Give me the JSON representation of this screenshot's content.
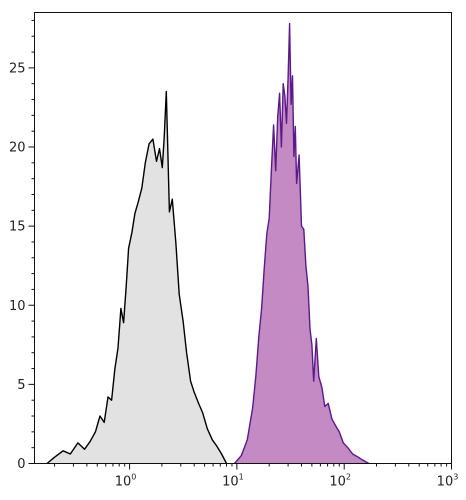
{
  "chart_data": {
    "type": "area",
    "title": "",
    "xlabel": "",
    "ylabel": "",
    "x_scale": "log",
    "xlim": [
      0.13,
      1000
    ],
    "ylim": [
      0,
      28.5
    ],
    "x_ticks": [
      {
        "value": 1,
        "base": "10",
        "exp": "0"
      },
      {
        "value": 10,
        "base": "10",
        "exp": "1"
      },
      {
        "value": 100,
        "base": "10",
        "exp": "2"
      },
      {
        "value": 1000,
        "base": "10",
        "exp": "3"
      }
    ],
    "y_ticks": [
      {
        "value": 0,
        "label": "0"
      },
      {
        "value": 5,
        "label": "5"
      },
      {
        "value": 10,
        "label": "10"
      },
      {
        "value": 15,
        "label": "15"
      },
      {
        "value": 20,
        "label": "20"
      },
      {
        "value": 25,
        "label": "25"
      }
    ],
    "grid": false,
    "legend": "none",
    "series": [
      {
        "fill": "#e2e2e2",
        "stroke": "#000000",
        "x": [
          0.17,
          0.2,
          0.24,
          0.28,
          0.33,
          0.38,
          0.43,
          0.48,
          0.53,
          0.58,
          0.63,
          0.68,
          0.73,
          0.78,
          0.83,
          0.88,
          0.93,
          0.98,
          1.05,
          1.12,
          1.2,
          1.3,
          1.4,
          1.52,
          1.65,
          1.78,
          1.9,
          2.02,
          2.1,
          2.2,
          2.35,
          2.5,
          2.7,
          2.9,
          3.15,
          3.4,
          3.7,
          4.0,
          4.4,
          4.8,
          5.3,
          5.9,
          6.5,
          7.2,
          8.0
        ],
        "y": [
          0,
          0.4,
          0.8,
          0.6,
          1.3,
          0.9,
          1.4,
          2.0,
          3.0,
          2.6,
          4.2,
          4.0,
          6.0,
          7.3,
          9.8,
          8.9,
          11.2,
          13.6,
          14.6,
          15.8,
          16.5,
          17.4,
          19.0,
          20.2,
          20.5,
          19.1,
          19.9,
          18.7,
          20.6,
          23.5,
          15.9,
          16.7,
          13.9,
          10.7,
          9.0,
          7.0,
          5.2,
          4.5,
          3.8,
          3.2,
          2.2,
          1.5,
          1.1,
          0.6,
          0
        ]
      },
      {
        "fill": "#c084c0",
        "stroke": "#5a1a8a",
        "x": [
          9.5,
          11.0,
          12.5,
          14.0,
          15.0,
          16.0,
          17.0,
          18.0,
          19.0,
          20.0,
          21.0,
          22.0,
          23.0,
          24.0,
          25.0,
          26.0,
          27.0,
          28.0,
          29.0,
          30.0,
          31.0,
          32.0,
          33.0,
          34.0,
          35.0,
          36.0,
          38.0,
          40.0,
          42.0,
          44.0,
          46.0,
          48.0,
          50.0,
          52.0,
          55.0,
          58.0,
          62.0,
          66.0,
          71.0,
          77.0,
          83.0,
          90.0,
          98.0,
          108.0,
          120.0,
          135.0,
          150.0,
          170.0
        ],
        "y": [
          0,
          0.5,
          1.5,
          3.5,
          5.5,
          8.0,
          9.8,
          12.4,
          14.5,
          15.5,
          18.7,
          21.4,
          18.5,
          21.9,
          23.4,
          20.0,
          24.0,
          23.2,
          21.5,
          24.4,
          27.8,
          22.7,
          24.5,
          19.4,
          21.3,
          17.7,
          19.5,
          15.0,
          14.8,
          12.5,
          11.2,
          8.5,
          7.5,
          5.2,
          7.9,
          5.5,
          4.8,
          3.6,
          3.8,
          2.8,
          2.4,
          2.0,
          1.3,
          1.0,
          0.6,
          0.4,
          0.2,
          0
        ]
      }
    ]
  }
}
